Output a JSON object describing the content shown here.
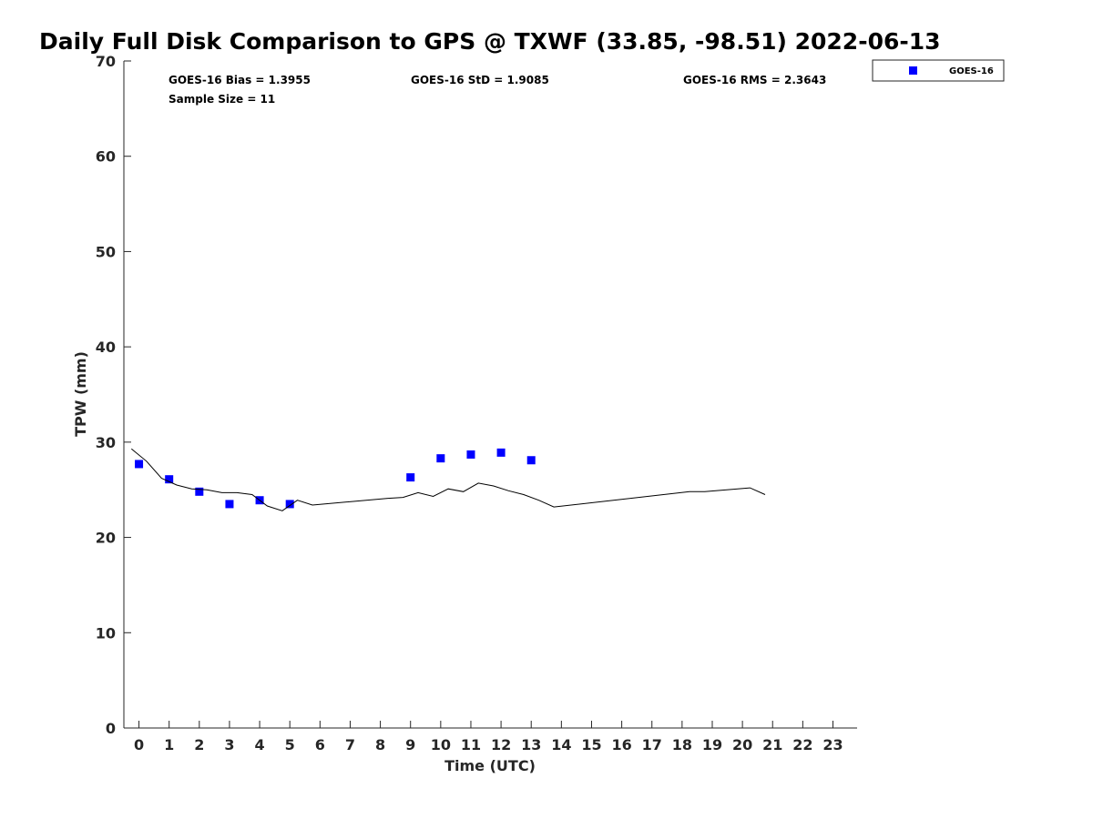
{
  "chart_data": {
    "type": "scatter",
    "title": "Daily Full Disk Comparison to GPS @ TXWF (33.85, -98.51) 2022-06-13",
    "xlabel": "Time (UTC)",
    "ylabel": "TPW (mm)",
    "xlim": [
      -0.5,
      23.8
    ],
    "ylim": [
      0,
      70
    ],
    "x_ticks": [
      "0",
      "1",
      "2",
      "3",
      "4",
      "5",
      "6",
      "7",
      "8",
      "9",
      "10",
      "11",
      "12",
      "13",
      "14",
      "15",
      "16",
      "17",
      "18",
      "19",
      "20",
      "21",
      "22",
      "23"
    ],
    "y_ticks": [
      "0",
      "10",
      "20",
      "30",
      "40",
      "50",
      "60",
      "70"
    ],
    "grid": false,
    "legend": {
      "placement": "outside top-right",
      "entries": [
        "GOES-16"
      ]
    },
    "stats": {
      "bias": "GOES-16 Bias = 1.3955",
      "std": "GOES-16 StD = 1.9085",
      "rms": "GOES-16 RMS = 2.3643",
      "sample": "Sample Size = 11"
    },
    "series": [
      {
        "name": "GOES-16",
        "style": "marker",
        "color": "#0000ff",
        "points": [
          [
            0.0,
            27.7
          ],
          [
            1.0,
            26.1
          ],
          [
            2.0,
            24.8
          ],
          [
            3.0,
            23.5
          ],
          [
            4.0,
            23.9
          ],
          [
            5.0,
            23.5
          ],
          [
            9.0,
            26.3
          ],
          [
            10.0,
            28.3
          ],
          [
            11.0,
            28.7
          ],
          [
            12.0,
            28.9
          ],
          [
            13.0,
            28.1
          ]
        ]
      },
      {
        "style": "line",
        "color": "#000000",
        "points": [
          [
            -0.25,
            29.3
          ],
          [
            0.25,
            28.0
          ],
          [
            0.75,
            26.2
          ],
          [
            1.25,
            25.5
          ],
          [
            1.75,
            25.1
          ],
          [
            2.25,
            25.0
          ],
          [
            2.75,
            24.7
          ],
          [
            3.25,
            24.7
          ],
          [
            3.75,
            24.5
          ],
          [
            4.25,
            23.3
          ],
          [
            4.75,
            22.8
          ],
          [
            5.25,
            23.9
          ],
          [
            5.75,
            23.4
          ],
          [
            8.25,
            24.1
          ],
          [
            8.75,
            24.2
          ],
          [
            9.25,
            24.7
          ],
          [
            9.75,
            24.3
          ],
          [
            10.25,
            25.1
          ],
          [
            10.75,
            24.8
          ],
          [
            11.25,
            25.7
          ],
          [
            11.75,
            25.4
          ],
          [
            12.25,
            24.9
          ],
          [
            12.75,
            24.5
          ],
          [
            13.25,
            23.9
          ],
          [
            13.75,
            23.2
          ],
          [
            18.25,
            24.8
          ],
          [
            18.75,
            24.8
          ],
          [
            20.25,
            25.2
          ],
          [
            20.75,
            24.5
          ]
        ]
      }
    ]
  }
}
